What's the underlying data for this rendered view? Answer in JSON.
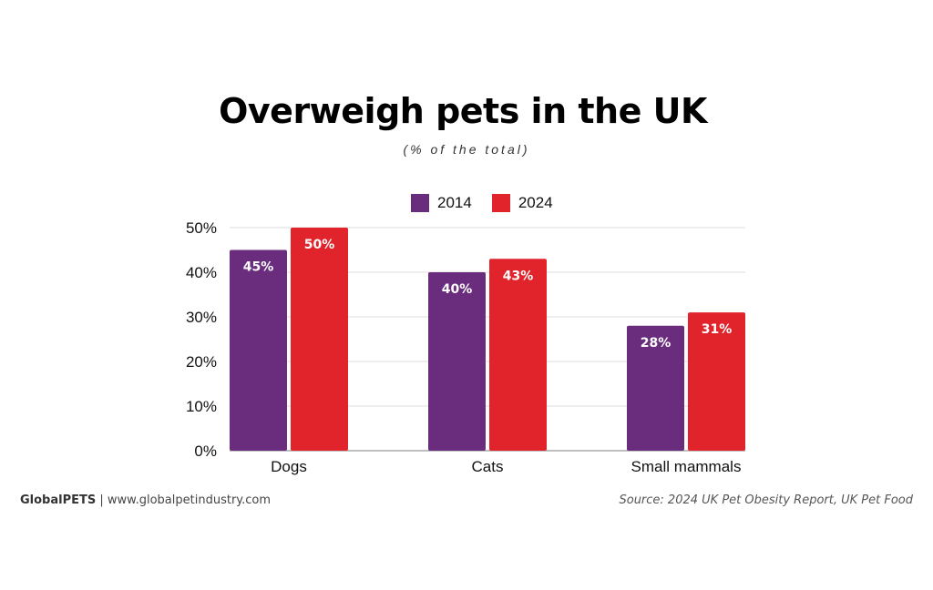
{
  "chart_data": {
    "type": "bar",
    "title": "Overweigh pets in the UK",
    "subtitle": "(% of the total)",
    "categories": [
      "Dogs",
      "Cats",
      "Small mammals"
    ],
    "series": [
      {
        "name": "2014",
        "color": "#6a2c7c",
        "values": [
          45,
          40,
          28
        ],
        "labels": [
          "45%",
          "40%",
          "28%"
        ]
      },
      {
        "name": "2024",
        "color": "#e1242b",
        "values": [
          50,
          43,
          31
        ],
        "labels": [
          "50%",
          "43%",
          "31%"
        ]
      }
    ],
    "yticks": [
      "0%",
      "10%",
      "20%",
      "30%",
      "40%",
      "50%"
    ],
    "ylim": [
      0,
      50
    ],
    "grid": true,
    "legend_position": "top-center"
  },
  "footer": {
    "brand": "GlobalPETS",
    "separator": "|",
    "website": "www.globalpetindustry.com",
    "source": "Source: 2024 UK Pet Obesity Report, UK Pet Food"
  },
  "colors": {
    "grid": "#dddddd",
    "axis": "#aaaaaa",
    "label_text": "#ffffff"
  }
}
